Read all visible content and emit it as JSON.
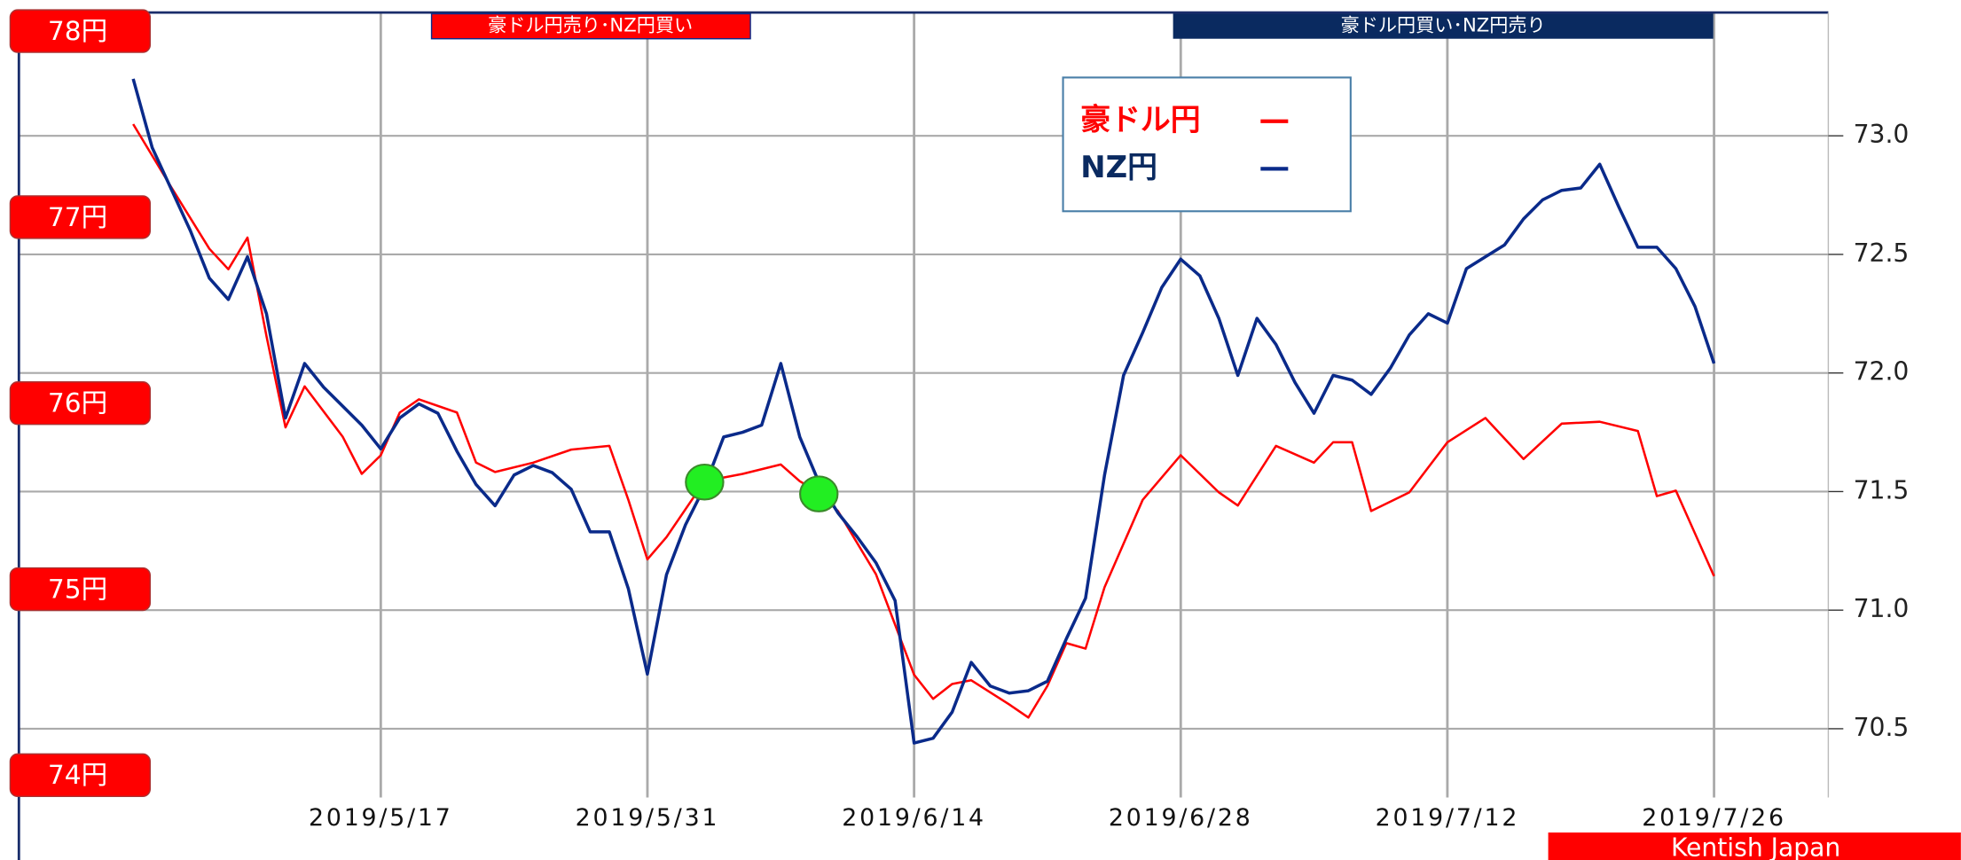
{
  "chart_data": {
    "type": "line",
    "annotations": [
      "豪ドル円売り･NZ円買い",
      "豪ドル円買い･NZ円売り"
    ],
    "watermark": "Kentish Japan",
    "xlim": [
      "2019/4/28",
      "2019/8/1"
    ],
    "xticks": [
      "2019/5/17",
      "2019/5/31",
      "2019/6/14",
      "2019/6/28",
      "2019/7/12",
      "2019/7/26"
    ],
    "ylim": [
      73.88,
      78.1
    ],
    "yticks": [
      {
        "value": 78,
        "label": "78円"
      },
      {
        "value": 77,
        "label": "77円"
      },
      {
        "value": 76,
        "label": "76円"
      },
      {
        "value": 75,
        "label": "75円"
      },
      {
        "value": 74,
        "label": "74円"
      }
    ],
    "y2lim": [
      70.21,
      73.52
    ],
    "y2ticks": [
      {
        "value": 73,
        "label": "73.0"
      },
      72.5,
      {
        "value": 72,
        "label": "72.0"
      },
      71.5,
      {
        "value": 71,
        "label": "71.0"
      },
      70.5
    ],
    "grid": true,
    "legend": "top-right",
    "series": [
      {
        "name": "豪ドル円",
        "color": "#ff0000",
        "axis": "y",
        "x": [
          "2019/5/4",
          "2019/5/6",
          "2019/5/8",
          "2019/5/9",
          "2019/5/10",
          "2019/5/11",
          "2019/5/12",
          "2019/5/13",
          "2019/5/15",
          "2019/5/16",
          "2019/5/17",
          "2019/5/18",
          "2019/5/19",
          "2019/5/21",
          "2019/5/22",
          "2019/5/23",
          "2019/5/25",
          "2019/5/27",
          "2019/5/29",
          "2019/5/30",
          "2019/5/31",
          "2019/6/1",
          "2019/6/3",
          "2019/6/5",
          "2019/6/7",
          "2019/6/8",
          "2019/6/9",
          "2019/6/10",
          "2019/6/12",
          "2019/6/14",
          "2019/6/15",
          "2019/6/16",
          "2019/6/17",
          "2019/6/19",
          "2019/6/20",
          "2019/6/21",
          "2019/6/22",
          "2019/6/23",
          "2019/6/24",
          "2019/6/26",
          "2019/6/28",
          "2019/6/30",
          "2019/7/1",
          "2019/7/3",
          "2019/7/5",
          "2019/7/6",
          "2019/7/7",
          "2019/7/8",
          "2019/7/10",
          "2019/7/12",
          "2019/7/14",
          "2019/7/16",
          "2019/7/18",
          "2019/7/20",
          "2019/7/22",
          "2019/7/23",
          "2019/7/24",
          "2019/7/26"
        ],
        "values": [
          77.5,
          77.16,
          76.83,
          76.72,
          76.89,
          76.36,
          75.87,
          76.09,
          75.82,
          75.62,
          75.72,
          75.95,
          76.02,
          75.95,
          75.68,
          75.63,
          75.68,
          75.75,
          75.77,
          75.48,
          75.16,
          75.28,
          75.58,
          75.62,
          75.67,
          75.58,
          75.52,
          75.42,
          75.08,
          74.54,
          74.41,
          74.49,
          74.51,
          74.38,
          74.31,
          74.48,
          74.71,
          74.68,
          75.01,
          75.48,
          75.72,
          75.52,
          75.45,
          75.77,
          75.68,
          75.79,
          75.79,
          75.42,
          75.52,
          75.79,
          75.92,
          75.7,
          75.89,
          75.9,
          75.85,
          75.5,
          75.53,
          75.07
        ]
      },
      {
        "name": "NZ円",
        "color": "#0a2a8a",
        "axis": "y2",
        "x": [
          "2019/5/4",
          "2019/5/5",
          "2019/5/7",
          "2019/5/8",
          "2019/5/9",
          "2019/5/10",
          "2019/5/11",
          "2019/5/12",
          "2019/5/13",
          "2019/5/14",
          "2019/5/16",
          "2019/5/17",
          "2019/5/18",
          "2019/5/19",
          "2019/5/20",
          "2019/5/21",
          "2019/5/22",
          "2019/5/23",
          "2019/5/24",
          "2019/5/25",
          "2019/5/26",
          "2019/5/27",
          "2019/5/28",
          "2019/5/29",
          "2019/5/30",
          "2019/5/31",
          "2019/6/1",
          "2019/6/2",
          "2019/6/3",
          "2019/6/4",
          "2019/6/5",
          "2019/6/6",
          "2019/6/7",
          "2019/6/8",
          "2019/6/9",
          "2019/6/10",
          "2019/6/11",
          "2019/6/12",
          "2019/6/13",
          "2019/6/14",
          "2019/6/15",
          "2019/6/16",
          "2019/6/17",
          "2019/6/18",
          "2019/6/19",
          "2019/6/20",
          "2019/6/21",
          "2019/6/22",
          "2019/6/23",
          "2019/6/24",
          "2019/6/25",
          "2019/6/26",
          "2019/6/27",
          "2019/6/28",
          "2019/6/29",
          "2019/6/30",
          "2019/7/1",
          "2019/7/2",
          "2019/7/3",
          "2019/7/4",
          "2019/7/5",
          "2019/7/6",
          "2019/7/7",
          "2019/7/8",
          "2019/7/9",
          "2019/7/10",
          "2019/7/11",
          "2019/7/12",
          "2019/7/13",
          "2019/7/14",
          "2019/7/15",
          "2019/7/16",
          "2019/7/17",
          "2019/7/18",
          "2019/7/19",
          "2019/7/20",
          "2019/7/21",
          "2019/7/22",
          "2019/7/23",
          "2019/7/24",
          "2019/7/25",
          "2019/7/26"
        ],
        "values": [
          73.24,
          72.95,
          72.6,
          72.4,
          72.31,
          72.49,
          72.25,
          71.81,
          72.04,
          71.94,
          71.78,
          71.68,
          71.81,
          71.87,
          71.83,
          71.67,
          71.53,
          71.44,
          71.57,
          71.61,
          71.58,
          71.51,
          71.33,
          71.33,
          71.09,
          70.73,
          71.15,
          71.36,
          71.52,
          71.73,
          71.75,
          71.78,
          72.04,
          71.73,
          71.54,
          71.41,
          71.31,
          71.2,
          71.04,
          70.44,
          70.46,
          70.57,
          70.78,
          70.68,
          70.65,
          70.66,
          70.7,
          70.88,
          71.05,
          71.57,
          71.99,
          72.17,
          72.36,
          72.48,
          72.41,
          72.23,
          71.99,
          72.23,
          72.12,
          71.96,
          71.83,
          71.99,
          71.97,
          71.91,
          72.02,
          72.16,
          72.25,
          72.21,
          72.44,
          72.49,
          72.54,
          72.65,
          72.73,
          72.77,
          72.78,
          72.88,
          72.7,
          72.53,
          72.53,
          72.44,
          72.28,
          72.04
        ]
      }
    ],
    "markers": {
      "color": "#22ee22",
      "axis": "y2",
      "x": [
        "2019/6/3",
        "2019/6/9"
      ],
      "values": [
        71.54,
        71.49
      ]
    }
  }
}
